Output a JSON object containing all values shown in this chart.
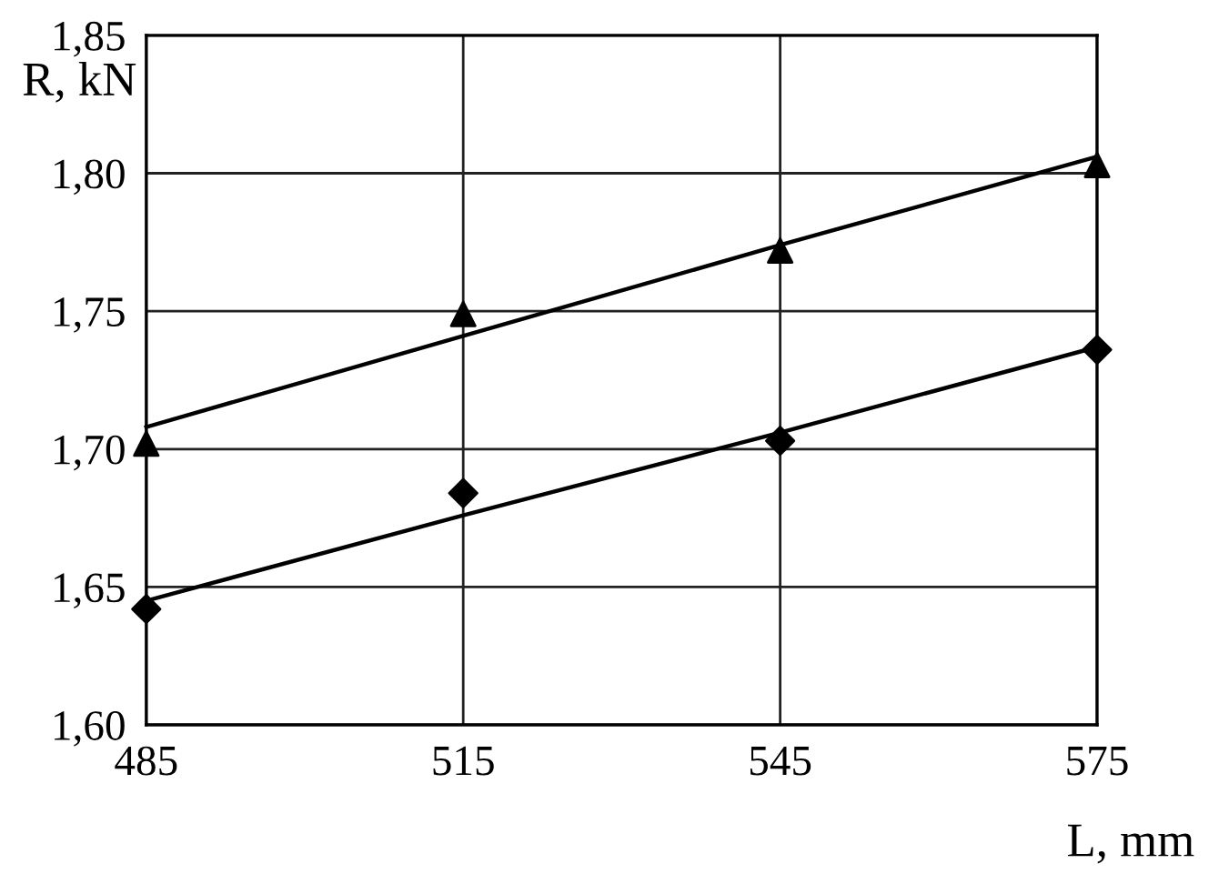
{
  "chart_data": {
    "type": "line",
    "xlabel": "L, mm",
    "ylabel": "R, kN",
    "x": [
      485,
      515,
      545,
      575
    ],
    "series": [
      {
        "type": "scatter",
        "marker": "triangle",
        "color": "#000000",
        "values": [
          1.702,
          1.749,
          1.772,
          1.803
        ]
      },
      {
        "type": "scatter",
        "marker": "diamond",
        "color": "#000000",
        "values": [
          1.642,
          1.684,
          1.703,
          1.736
        ]
      },
      {
        "marker": "none",
        "color": "#000000",
        "values": [
          1.708,
          1.741,
          1.774,
          1.806
        ]
      },
      {
        "marker": "none",
        "color": "#000000",
        "values": [
          1.645,
          1.676,
          1.706,
          1.737
        ]
      }
    ],
    "xlim": [
      485,
      575
    ],
    "xticks": [
      485,
      515,
      545,
      575
    ],
    "ylim": [
      1.6,
      1.85
    ],
    "yticks": [
      {
        "value": 1.6,
        "label": "1,60"
      },
      {
        "value": 1.65,
        "label": "1,65"
      },
      {
        "value": 1.7,
        "label": "1,70"
      },
      {
        "value": 1.75,
        "label": "1,75"
      },
      {
        "value": 1.8,
        "label": "1,80"
      },
      {
        "value": 1.85,
        "label": "1,85"
      }
    ],
    "grid": true,
    "legend": false
  }
}
